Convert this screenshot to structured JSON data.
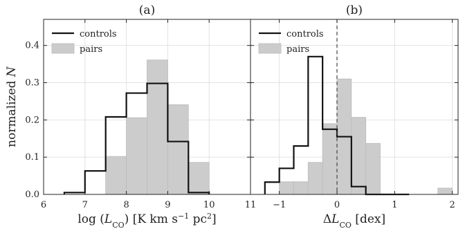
{
  "chart_data": [
    {
      "type": "bar",
      "title": "(a)",
      "xlabel_html": "log (<tspan font-style='italic'>L</tspan><tspan baseline-shift='sub' font-size='11'>CO</tspan>) [K km s<tspan baseline-shift='super' font-size='11'>−1</tspan> pc<tspan baseline-shift='super' font-size='11'>2</tspan>]",
      "ylabel_html": "normalized <tspan font-style='italic'>N</tspan>",
      "xlim": [
        6,
        11
      ],
      "ylim": [
        0,
        0.47
      ],
      "xticks": [
        6,
        7,
        8,
        9,
        10,
        11
      ],
      "yticks": [
        0.0,
        0.1,
        0.2,
        0.3,
        0.4
      ],
      "yticklabels": [
        "0.0",
        "0.1",
        "0.2",
        "0.3",
        "0.4"
      ],
      "grid": true,
      "legend_position": "top-left",
      "series": [
        {
          "name": "controls",
          "style": "step",
          "bins": [
            6.5,
            6.75,
            7.0,
            7.25,
            7.5,
            7.75,
            8.0,
            8.25,
            8.5,
            8.75,
            9.0,
            9.25,
            9.5,
            9.75,
            10.0
          ],
          "values": [
            0.005,
            0.005,
            0.063,
            0.063,
            0.208,
            0.208,
            0.272,
            0.272,
            0.298,
            0.298,
            0.142,
            0.142,
            0.005,
            0.005
          ]
        },
        {
          "name": "pairs",
          "style": "filled",
          "bins": [
            7.5,
            8.0,
            8.5,
            9.0,
            9.5,
            10.0
          ],
          "values": [
            0.102,
            0.206,
            0.361,
            0.241,
            0.086
          ]
        }
      ]
    },
    {
      "type": "bar",
      "title": "(b)",
      "xlabel_html": "Δ<tspan font-style='italic'>L</tspan><tspan baseline-shift='sub' font-size='11'>CO</tspan> [dex]",
      "ylabel_html": "",
      "xlim": [
        -1.5,
        2.1
      ],
      "ylim": [
        0,
        0.47
      ],
      "xticks": [
        -1,
        0,
        1,
        2
      ],
      "xticklabels": [
        "−1",
        "0",
        "1",
        "2"
      ],
      "yticks": [
        0.0,
        0.1,
        0.2,
        0.3,
        0.4
      ],
      "grid": true,
      "legend_position": "top-left",
      "reference_line_x": 0,
      "series": [
        {
          "name": "controls",
          "style": "step",
          "bins": [
            -1.25,
            -1.0,
            -0.75,
            -0.5,
            -0.25,
            0.0,
            0.25,
            0.5,
            0.75,
            1.0,
            1.25
          ],
          "values": [
            0.033,
            0.07,
            0.13,
            0.37,
            0.175,
            0.155,
            0.021,
            0.0,
            0.0,
            0.0
          ]
        },
        {
          "name": "pairs",
          "style": "filled",
          "bins": [
            -1.0,
            -0.75,
            -0.5,
            -0.25,
            0.0,
            0.25,
            0.5,
            0.75,
            1.0,
            1.25,
            1.5,
            1.75,
            2.0
          ],
          "values": [
            0.034,
            0.034,
            0.086,
            0.19,
            0.31,
            0.207,
            0.137,
            0.0,
            0.0,
            0.0,
            0.0,
            0.017
          ]
        }
      ]
    }
  ]
}
